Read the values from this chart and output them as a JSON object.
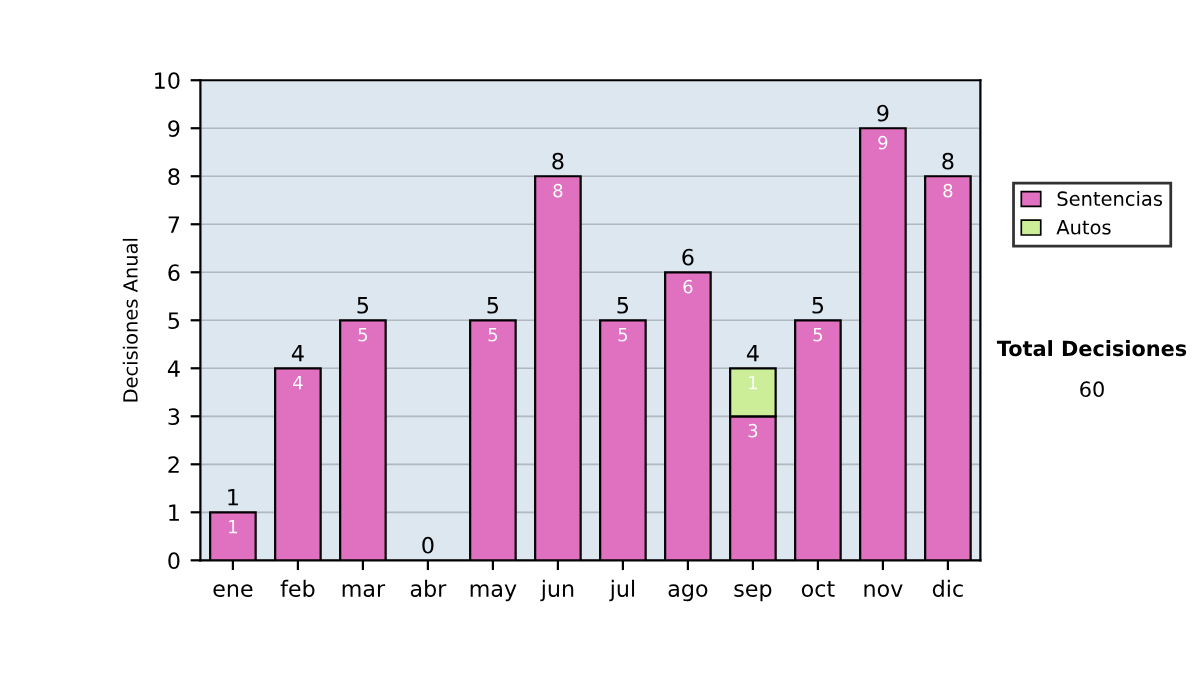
{
  "chart_data": {
    "type": "bar",
    "stacked": true,
    "ylabel": "Decisiones Anual",
    "categories": [
      "ene",
      "feb",
      "mar",
      "abr",
      "may",
      "jun",
      "jul",
      "ago",
      "sep",
      "oct",
      "nov",
      "dic"
    ],
    "series": [
      {
        "name": "Sentencias",
        "color": "#e070c0",
        "values": [
          1,
          4,
          5,
          0,
          5,
          8,
          5,
          6,
          3,
          5,
          9,
          8
        ],
        "value_labels": [
          "1",
          "4",
          "5",
          null,
          "5",
          "8",
          "5",
          "6",
          "3",
          "5",
          "9",
          "8"
        ]
      },
      {
        "name": "Autos",
        "color": "#ccee99",
        "values": [
          0,
          0,
          0,
          0,
          0,
          0,
          0,
          0,
          1,
          0,
          0,
          0
        ],
        "value_labels": [
          null,
          null,
          null,
          null,
          null,
          null,
          null,
          null,
          "1",
          null,
          null,
          null
        ]
      }
    ],
    "totals": [
      "1",
      "4",
      "5",
      "0",
      "5",
      "8",
      "5",
      "6",
      "4",
      "5",
      "9",
      "8"
    ],
    "ylim": [
      0,
      10
    ],
    "yticks": [
      0,
      1,
      2,
      3,
      4,
      5,
      6,
      7,
      8,
      9,
      10
    ],
    "grid": "y",
    "legend": "right",
    "annotations": [
      "Total Decisiones",
      "60"
    ]
  }
}
